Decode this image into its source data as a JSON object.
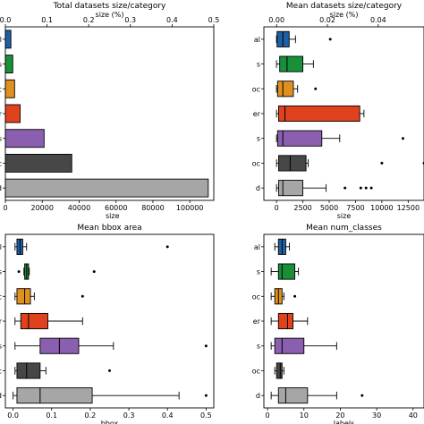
{
  "chart_data": [
    {
      "type": "bar",
      "title": "Total datasets size/category",
      "xlabel": "size",
      "top_xlabel": "size (%)",
      "orientation": "horizontal",
      "categories": [
        "al",
        "s",
        "oc",
        "er",
        "s",
        "oc",
        "d"
      ],
      "values": [
        3000,
        4000,
        5000,
        8000,
        21000,
        36000,
        110000
      ],
      "colors": [
        "#1f5fa6",
        "#1a8f3a",
        "#e0901e",
        "#e0421e",
        "#8a5fb0",
        "#474747",
        "#a6a6a6"
      ],
      "xlim": [
        0,
        113000
      ],
      "xticks": [
        0,
        20000,
        40000,
        60000,
        80000,
        100000
      ],
      "xtick_labels": [
        "0",
        "20000",
        "40000",
        "60000",
        "80000",
        "100000"
      ],
      "top_xlim": [
        0,
        0.5
      ],
      "top_xticks": [
        0.0,
        0.1,
        0.2,
        0.3,
        0.4,
        0.5
      ],
      "top_xtick_labels": [
        "0.0",
        "0.1",
        "0.2",
        "0.3",
        "0.4",
        "0.5"
      ],
      "grid": false
    },
    {
      "type": "box",
      "title": "Mean datasets size/category",
      "xlabel": "size",
      "top_xlabel": "size (%)",
      "categories": [
        "al",
        "s",
        "oc",
        "er",
        "s",
        "oc",
        "d"
      ],
      "colors": [
        "#1f5fa6",
        "#1a8f3a",
        "#e0901e",
        "#e0421e",
        "#8a5fb0",
        "#474747",
        "#a6a6a6"
      ],
      "boxes": [
        {
          "whislo": 0,
          "q1": 50,
          "med": 600,
          "q3": 1200,
          "whishi": 1800,
          "fliers": [
            5100
          ]
        },
        {
          "whislo": 0,
          "q1": 300,
          "med": 1000,
          "q3": 2500,
          "whishi": 3500,
          "fliers": []
        },
        {
          "whislo": 0,
          "q1": 100,
          "med": 600,
          "q3": 1600,
          "whishi": 2000,
          "fliers": [
            3700
          ]
        },
        {
          "whislo": 0,
          "q1": 200,
          "med": 800,
          "q3": 7900,
          "whishi": 8300,
          "fliers": []
        },
        {
          "whislo": 0,
          "q1": 100,
          "med": 600,
          "q3": 4300,
          "whishi": 6000,
          "fliers": [
            12000
          ]
        },
        {
          "whislo": 0,
          "q1": 200,
          "med": 1300,
          "q3": 2800,
          "whishi": 3000,
          "fliers": [
            10000,
            14000
          ]
        },
        {
          "whislo": 0,
          "q1": 200,
          "med": 600,
          "q3": 2500,
          "whishi": 4700,
          "fliers": [
            6500,
            8000,
            8500,
            9000
          ]
        }
      ],
      "xlim": [
        -1200,
        14000
      ],
      "xticks": [
        0,
        2500,
        5000,
        7500,
        10000,
        12500
      ],
      "xtick_labels": [
        "0",
        "2500",
        "5000",
        "7500",
        "10000",
        "12500"
      ],
      "top_xlim": [
        -0.005,
        0.058
      ],
      "top_xticks": [
        0.0,
        0.02,
        0.04
      ],
      "top_xtick_labels": [
        "0.00",
        "0.02",
        "0.04"
      ],
      "grid": false
    },
    {
      "type": "box",
      "title": "Mean bbox area",
      "xlabel": "bbox",
      "categories": [
        "al",
        "s",
        "oc",
        "er",
        "s",
        "oc",
        "d"
      ],
      "colors": [
        "#1f5fa6",
        "#1a8f3a",
        "#e0901e",
        "#e0421e",
        "#8a5fb0",
        "#474747",
        "#a6a6a6"
      ],
      "boxes": [
        {
          "whislo": 0.005,
          "q1": 0.01,
          "med": 0.018,
          "q3": 0.025,
          "whishi": 0.035,
          "fliers": [
            0.4
          ]
        },
        {
          "whislo": 0.028,
          "q1": 0.03,
          "med": 0.035,
          "q3": 0.04,
          "whishi": 0.042,
          "fliers": [
            0.015,
            0.21
          ]
        },
        {
          "whislo": 0.005,
          "q1": 0.01,
          "med": 0.03,
          "q3": 0.045,
          "whishi": 0.055,
          "fliers": [
            0.18
          ]
        },
        {
          "whislo": 0.005,
          "q1": 0.02,
          "med": 0.04,
          "q3": 0.09,
          "whishi": 0.18,
          "fliers": []
        },
        {
          "whislo": 0.005,
          "q1": 0.07,
          "med": 0.12,
          "q3": 0.17,
          "whishi": 0.26,
          "fliers": [
            0.5
          ]
        },
        {
          "whislo": 0.005,
          "q1": 0.01,
          "med": 0.035,
          "q3": 0.07,
          "whishi": 0.085,
          "fliers": [
            0.25
          ]
        },
        {
          "whislo": 0.0,
          "q1": 0.01,
          "med": 0.07,
          "q3": 0.205,
          "whishi": 0.43,
          "fliers": [
            0.5
          ]
        }
      ],
      "xlim": [
        -0.02,
        0.52
      ],
      "xticks": [
        0.0,
        0.1,
        0.2,
        0.3,
        0.4,
        0.5
      ],
      "xtick_labels": [
        "0.0",
        "0.1",
        "0.2",
        "0.3",
        "0.4",
        "0.5"
      ],
      "grid": false
    },
    {
      "type": "box",
      "title": "Mean num_classes",
      "xlabel": "labels",
      "categories": [
        "al",
        "s",
        "oc",
        "er",
        "s",
        "oc",
        "d"
      ],
      "colors": [
        "#1f5fa6",
        "#1a8f3a",
        "#e0901e",
        "#e0421e",
        "#8a5fb0",
        "#474747",
        "#a6a6a6"
      ],
      "boxes": [
        {
          "whislo": 2,
          "q1": 3,
          "med": 4,
          "q3": 5,
          "whishi": 6,
          "fliers": []
        },
        {
          "whislo": 1,
          "q1": 3,
          "med": 4,
          "q3": 7.5,
          "whishi": 8.5,
          "fliers": []
        },
        {
          "whislo": 1,
          "q1": 2,
          "med": 3,
          "q3": 4,
          "whishi": 4.5,
          "fliers": [
            7.5
          ]
        },
        {
          "whislo": 1,
          "q1": 3,
          "med": 5.5,
          "q3": 7,
          "whishi": 11,
          "fliers": []
        },
        {
          "whislo": 1,
          "q1": 2,
          "med": 4,
          "q3": 10,
          "whishi": 19,
          "fliers": []
        },
        {
          "whislo": 2,
          "q1": 2.5,
          "med": 3.5,
          "q3": 4,
          "whishi": 4.5,
          "fliers": []
        },
        {
          "whislo": 1,
          "q1": 3,
          "med": 5,
          "q3": 11,
          "whishi": 19,
          "fliers": [
            26
          ]
        }
      ],
      "xlim": [
        -1,
        43
      ],
      "xticks": [
        0,
        10,
        20,
        30,
        40
      ],
      "xtick_labels": [
        "0",
        "10",
        "20",
        "30",
        "40"
      ],
      "grid": false
    }
  ]
}
